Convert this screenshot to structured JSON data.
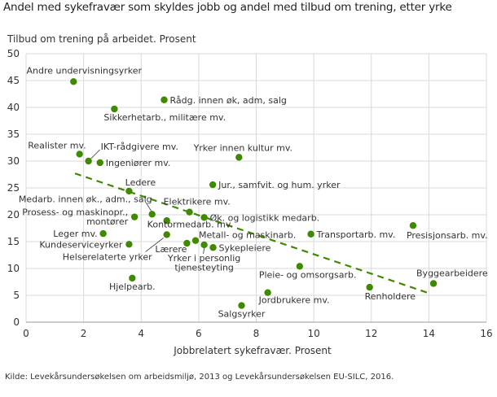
{
  "title": "Andel med sykefravær som skyldes jobb og andel med tilbud om trening, etter yrke",
  "source": "Kilde: Levekårsundersøkelsen om arbeidsmiljø, 2013 og Levekårsundersøkelsen EU-SILC, 2016.",
  "chart_data": {
    "type": "scatter",
    "title": "Andel med sykefravær som skyldes jobb og andel med tilbud om trening, etter yrke",
    "xlabel": "Jobbrelatert sykefravær. Prosent",
    "ylabel": "Tilbud om trening på arbeidet. Prosent",
    "xlim": [
      0,
      16
    ],
    "ylim": [
      0,
      50
    ],
    "xticks": [
      "0",
      "2",
      "4",
      "6",
      "8",
      "10",
      "12",
      "14",
      "16"
    ],
    "yticks": [
      "0",
      "5",
      "10",
      "15",
      "20",
      "25",
      "30",
      "35",
      "40",
      "45",
      "50"
    ],
    "grid": true,
    "point_color": "#3f8a00",
    "trendline": {
      "style": "dashed",
      "color": "#3f8a00",
      "x": [
        1.7,
        14.0
      ],
      "y": [
        27.7,
        5.4
      ]
    },
    "points": [
      {
        "label": "Andre undervisningsyrker",
        "x": 1.65,
        "y": 44.8
      },
      {
        "label": "Rådg. innen øk, adm, salg",
        "x": 4.8,
        "y": 41.4
      },
      {
        "label": "Sikkerhetarb., militære mv.",
        "x": 3.07,
        "y": 39.7
      },
      {
        "label": "Realister mv.",
        "x": 1.86,
        "y": 31.3
      },
      {
        "label": "IKT-rådgivere mv.",
        "x": 2.17,
        "y": 30.0
      },
      {
        "label": "Ingeniører mv.",
        "x": 2.57,
        "y": 29.7
      },
      {
        "label": "Yrker innen kultur mv.",
        "x": 7.4,
        "y": 30.7
      },
      {
        "label": "Jur., samfvit. og hum. yrker",
        "x": 6.49,
        "y": 25.6
      },
      {
        "label": "Ledere",
        "x": 3.58,
        "y": 24.4
      },
      {
        "label": "Medarb. innen øk., adm., salg",
        "x": 4.38,
        "y": 20.1
      },
      {
        "label": "Prosess- og maskinopr., montører",
        "x": 3.77,
        "y": 19.6
      },
      {
        "label": "Elektrikere mv.",
        "x": 5.68,
        "y": 20.5
      },
      {
        "label": "Øk. og logistikk medarb.",
        "x": 6.19,
        "y": 19.5
      },
      {
        "label": "Kontormedarb. mv.",
        "x": 4.89,
        "y": 18.9
      },
      {
        "label": "Leger mv.",
        "x": 2.68,
        "y": 16.5
      },
      {
        "label": "Kundeserviceyrker",
        "x": 3.58,
        "y": 14.5
      },
      {
        "label": "Helserelaterte yrker",
        "x": 4.89,
        "y": 16.3
      },
      {
        "label": "Lærere",
        "x": 5.59,
        "y": 14.7
      },
      {
        "label": "Metall- og maskinarb.",
        "x": 5.89,
        "y": 15.2
      },
      {
        "label": "Yrker i personlig tjenesteyting",
        "x": 6.19,
        "y": 14.4
      },
      {
        "label": "Sykepleiere",
        "x": 6.5,
        "y": 13.9
      },
      {
        "label": "Pleie- og omsorgsarb.",
        "x": 9.51,
        "y": 10.4
      },
      {
        "label": "Hjelpearb.",
        "x": 3.69,
        "y": 8.2
      },
      {
        "label": "Jordbrukere mv.",
        "x": 8.4,
        "y": 5.5
      },
      {
        "label": "Salgsyrker",
        "x": 7.49,
        "y": 3.1
      },
      {
        "label": "Transportarb. mv.",
        "x": 9.9,
        "y": 16.4
      },
      {
        "label": "Presisjonsarb. mv.",
        "x": 13.45,
        "y": 18.0
      },
      {
        "label": "Renholdere",
        "x": 11.94,
        "y": 6.5
      },
      {
        "label": "Byggearbeidere",
        "x": 14.16,
        "y": 7.2
      }
    ]
  }
}
